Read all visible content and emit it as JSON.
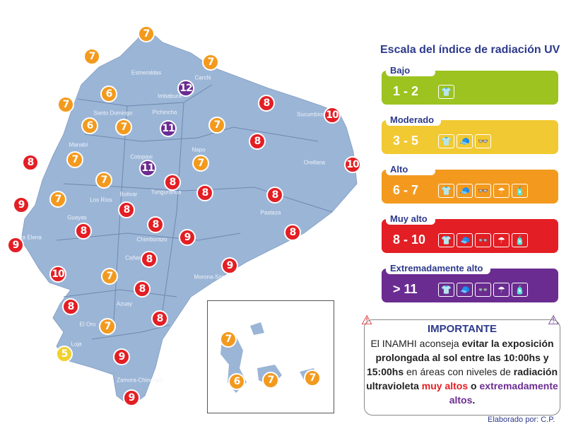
{
  "legend": {
    "title": "Escala del índice de radiación UV",
    "levels": [
      {
        "label": "Bajo",
        "range": "1 - 2",
        "color": "#9cc31f",
        "icons": [
          "shirt-icon"
        ]
      },
      {
        "label": "Moderado",
        "range": "3 - 5",
        "color": "#f1c932",
        "icons": [
          "shirt-icon",
          "cap-icon",
          "sunglasses-icon"
        ]
      },
      {
        "label": "Alto",
        "range": "6 - 7",
        "color": "#f39a1e",
        "icons": [
          "shirt-icon",
          "cap-icon",
          "sunglasses-icon",
          "umbrella-icon",
          "sunscreen-icon"
        ]
      },
      {
        "label": "Muy alto",
        "range": "8 - 10",
        "color": "#e31e24",
        "icons": [
          "shirt-icon",
          "cap-icon",
          "sunglasses-icon",
          "umbrella-icon",
          "sunscreen-icon"
        ]
      },
      {
        "label": "Extremadamente alto",
        "range": "> 11",
        "color": "#6b2c91",
        "icons": [
          "shirt-icon",
          "cap-icon",
          "sunglasses-icon",
          "umbrella-icon",
          "sunscreen-icon"
        ]
      }
    ]
  },
  "important": {
    "title": "IMPORTANTE",
    "t1": "El INAMHI aconseja ",
    "b1": "evitar la exposición prolongada al sol entre las 10:00hs y 15:00hs",
    "t2": " en áreas con niveles de ",
    "b2": "radiación ultravioleta ",
    "r1": "muy altos",
    "t3": " o ",
    "p1": "extremadamente altos",
    "t4": "."
  },
  "credit": "Elaborado por: C.P.",
  "provinces": [
    "Esmeraldas",
    "Carchi",
    "Imbabura",
    "Sucumbíos",
    "Santo Domingo",
    "Pichincha",
    "Manabí",
    "Napo",
    "Orellana",
    "Cotopaxi",
    "Los Ríos",
    "Bolívar",
    "Tungurahua",
    "Pastaza",
    "Guayas",
    "Santa Elena",
    "Chimborazo",
    "Cañar",
    "Morona-Santiago",
    "Azuay",
    "El Oro",
    "Loja",
    "Zamora-Chinchipe"
  ],
  "uv_values": [
    7,
    7,
    7,
    12,
    6,
    7,
    8,
    6,
    7,
    11,
    7,
    10,
    8,
    8,
    7,
    7,
    11,
    10,
    7,
    8,
    8,
    8,
    7,
    9,
    8,
    8,
    9,
    8,
    8,
    9,
    8,
    9,
    10,
    7,
    8,
    8,
    8,
    7,
    5,
    9,
    9
  ],
  "galapagos_values": [
    7,
    6,
    7,
    7
  ],
  "level_colors": {
    "5": "#f1d02f",
    "6": "#f39a1e",
    "7": "#f39a1e",
    "8": "#e31e24",
    "9": "#e31e24",
    "10": "#e31e24",
    "11": "#6b2c91",
    "12": "#6b2c91"
  }
}
